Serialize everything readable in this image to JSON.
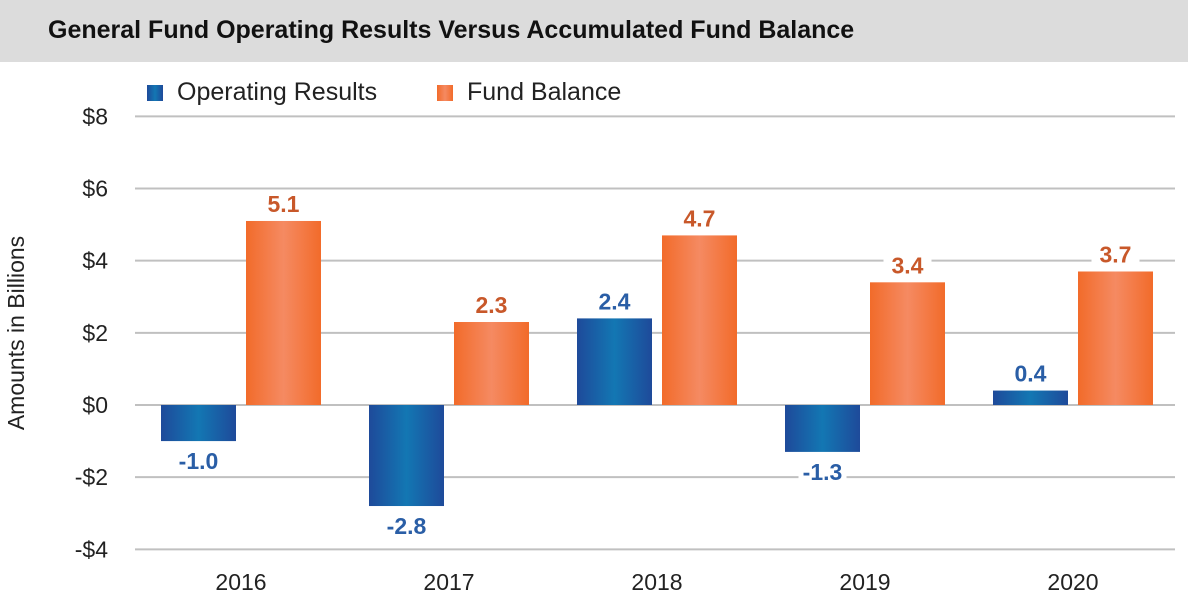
{
  "chart_data": {
    "type": "bar",
    "title": "General Fund Operating Results Versus Accumulated Fund Balance",
    "ylabel": "Amounts in Billions",
    "xlabel": "",
    "categories": [
      "2016",
      "2017",
      "2018",
      "2019",
      "2020"
    ],
    "series": [
      {
        "name": "Operating Results",
        "values": [
          -1.0,
          -2.8,
          2.4,
          -1.3,
          0.4
        ],
        "labels": [
          "-1.0",
          "-2.8",
          "2.4",
          "-1.3",
          "0.4"
        ],
        "color": "#1e4a9a",
        "color_light": "#1377b3",
        "label_color": "#2a5ea6"
      },
      {
        "name": "Fund Balance",
        "values": [
          5.1,
          2.3,
          4.7,
          3.4,
          3.7
        ],
        "labels": [
          "5.1",
          "2.3",
          "4.7",
          "3.4",
          "3.7"
        ],
        "color": "#f26b2a",
        "color_light": "#f58a62",
        "label_color": "#c8582a"
      }
    ],
    "ylim": [
      -4,
      8
    ],
    "yticks": [
      8,
      6,
      4,
      2,
      0,
      -2,
      -4
    ],
    "ytick_labels": [
      "$8",
      "$6",
      "$4",
      "$2",
      "$0",
      "-$2",
      "-$4"
    ],
    "grid": true,
    "legend_position": "top-left"
  }
}
